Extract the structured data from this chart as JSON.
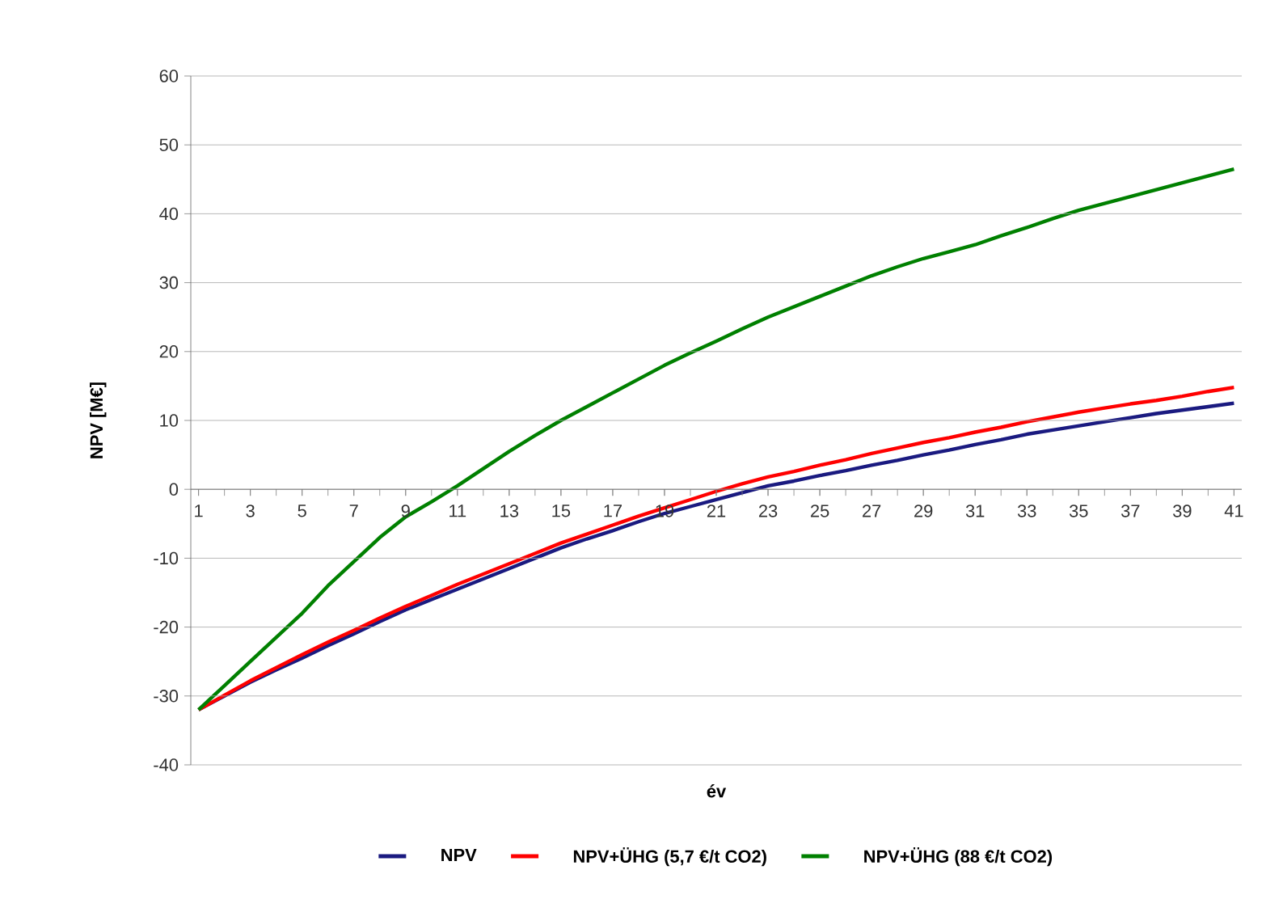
{
  "chart_data": {
    "type": "line",
    "xlabel": "év",
    "ylabel": "NPV [M€]",
    "categories": [
      "1",
      null,
      "3",
      null,
      "5",
      null,
      "7",
      null,
      "9",
      null,
      "11",
      null,
      "13",
      null,
      "15",
      null,
      "17",
      null,
      "19",
      null,
      "21",
      null,
      "23",
      null,
      "25",
      null,
      "27",
      null,
      "29",
      null,
      "31",
      null,
      "33",
      null,
      "35",
      null,
      "37",
      null,
      "39",
      null,
      "41"
    ],
    "series": [
      {
        "name": "NPV",
        "color": "#1a1a80",
        "values": [
          -32,
          -30,
          -28,
          -26.2,
          -24.5,
          -22.7,
          -21,
          -19.2,
          -17.5,
          -16,
          -14.5,
          -13,
          -11.5,
          -10,
          -8.5,
          -7.2,
          -6,
          -4.7,
          -3.5,
          -2.5,
          -1.5,
          -0.5,
          0.5,
          1.2,
          2,
          2.7,
          3.5,
          4.2,
          5,
          5.7,
          6.5,
          7.2,
          8,
          8.6,
          9.2,
          9.8,
          10.4,
          11,
          11.5,
          12,
          12.5
        ]
      },
      {
        "name": "NPV+ÜHG (5,7 €/t CO2)",
        "color": "#ff0000",
        "values": [
          -32,
          -29.9,
          -27.8,
          -25.9,
          -24,
          -22.2,
          -20.5,
          -18.7,
          -17,
          -15.4,
          -13.8,
          -12.3,
          -10.8,
          -9.3,
          -7.8,
          -6.5,
          -5.2,
          -3.9,
          -2.7,
          -1.5,
          -0.3,
          0.8,
          1.8,
          2.6,
          3.5,
          4.3,
          5.2,
          6,
          6.8,
          7.5,
          8.3,
          9,
          9.8,
          10.5,
          11.2,
          11.8,
          12.4,
          12.9,
          13.5,
          14.2,
          14.8
        ]
      },
      {
        "name": "NPV+ÜHG (88 €/t CO2)",
        "color": "#008000",
        "values": [
          -32,
          -28.5,
          -25,
          -21.5,
          -18,
          -14,
          -10.5,
          -7,
          -4,
          -1.8,
          0.5,
          3,
          5.5,
          7.8,
          10,
          12,
          14,
          16,
          18,
          19.8,
          21.5,
          23.3,
          25,
          26.5,
          28,
          29.5,
          31,
          32.3,
          33.5,
          34.5,
          35.5,
          36.8,
          38,
          39.3,
          40.5,
          41.5,
          42.5,
          43.5,
          44.5,
          45.5,
          46.5
        ]
      }
    ],
    "ylim": [
      -40,
      60
    ],
    "yticks": [
      -40,
      -30,
      -20,
      -10,
      0,
      10,
      20,
      30,
      40,
      50,
      60
    ],
    "grid": "y",
    "legend": "bottom",
    "marker": "none",
    "line_style": "solid"
  }
}
